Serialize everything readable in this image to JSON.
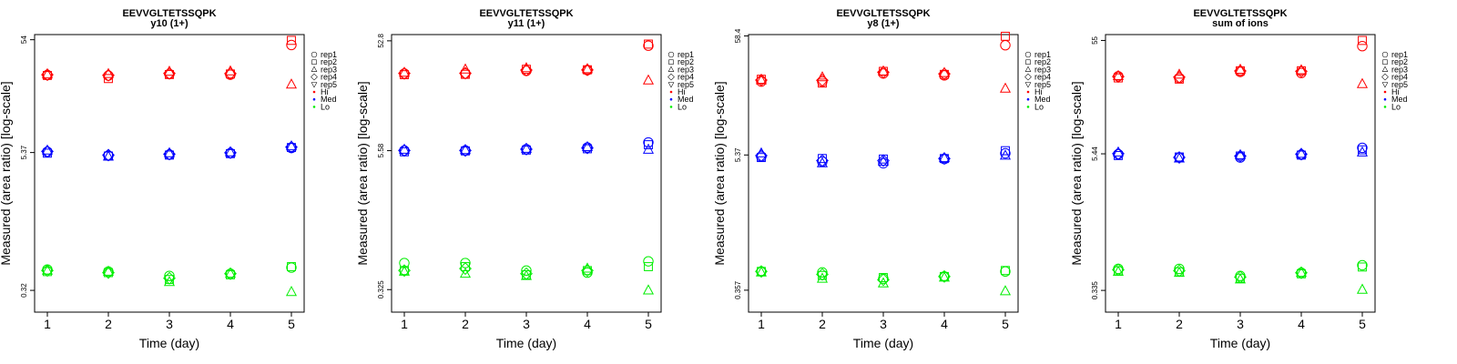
{
  "colors": {
    "Hi": "#ff0000",
    "Med": "#0000ff",
    "Lo": "#00ee00",
    "axis": "#000000"
  },
  "legend": {
    "reps": [
      {
        "label": "rep1",
        "marker": "circle"
      },
      {
        "label": "rep2",
        "marker": "square"
      },
      {
        "label": "rep3",
        "marker": "triangle-up"
      },
      {
        "label": "rep4",
        "marker": "diamond"
      },
      {
        "label": "rep5",
        "marker": "triangle-down"
      }
    ],
    "levels": [
      {
        "label": "Hi",
        "color": "Hi"
      },
      {
        "label": "Med",
        "color": "Med"
      },
      {
        "label": "Lo",
        "color": "Lo"
      }
    ]
  },
  "chart_data": [
    {
      "type": "scatter",
      "title": "EEVVGLTETSSQPK",
      "subtitle": "y10 (1+)",
      "xlabel": "Time (day)",
      "ylabel": "Measured (area ratio) [log-scale]",
      "x_ticks": [
        "1",
        "2",
        "3",
        "4",
        "5"
      ],
      "y_ticks": [
        "0.32",
        "5.37",
        "54"
      ],
      "ylim_log": [
        0.32,
        54
      ],
      "ylim_display": [
        0.205,
        60
      ],
      "series": {
        "Hi": {
          "rep1": [
            26.2,
            25.9,
            26.8,
            26.4,
            48.5
          ],
          "rep2": [
            26.0,
            24.4,
            26.5,
            26.8,
            53.3
          ],
          "rep3": [
            26.6,
            26.8,
            28.1,
            28.3,
            21.6
          ],
          "rep4": [
            26.4,
            26.1,
            27.1,
            27.0,
            null
          ],
          "rep5": [
            null,
            null,
            null,
            null,
            null
          ]
        },
        "Med": {
          "rep1": [
            5.45,
            5.05,
            5.15,
            5.3,
            5.9
          ],
          "rep2": [
            5.3,
            5.0,
            5.1,
            5.25,
            5.95
          ],
          "rep3": [
            5.6,
            4.95,
            5.3,
            5.4,
            6.1
          ],
          "rep4": [
            5.5,
            5.1,
            5.2,
            5.35,
            6.0
          ],
          "rep5": [
            null,
            null,
            null,
            null,
            null
          ]
        },
        "Lo": {
          "rep1": [
            0.49,
            0.47,
            0.43,
            0.45,
            0.51
          ],
          "rep2": [
            0.47,
            0.46,
            0.4,
            0.44,
            0.52
          ],
          "rep3": [
            0.48,
            0.47,
            0.38,
            0.45,
            0.31
          ],
          "rep4": [
            0.48,
            0.46,
            0.41,
            0.45,
            null
          ],
          "rep5": [
            null,
            null,
            null,
            null,
            null
          ]
        }
      }
    },
    {
      "type": "scatter",
      "title": "EEVVGLTETSSQPK",
      "subtitle": "y11 (1+)",
      "xlabel": "Time (day)",
      "ylabel": "Measured (area ratio) [log-scale]",
      "x_ticks": [
        "1",
        "2",
        "3",
        "4",
        "5"
      ],
      "y_ticks": [
        "0.325",
        "5.58",
        "52.8"
      ],
      "ylim_log": [
        0.325,
        52.8
      ],
      "ylim_display": [
        0.205,
        60
      ],
      "series": {
        "Hi": {
          "rep1": [
            27.0,
            27.0,
            28.6,
            29.0,
            47.8
          ],
          "rep2": [
            26.4,
            26.6,
            29.5,
            29.2,
            49.4
          ],
          "rep3": [
            27.5,
            29.4,
            30.2,
            29.6,
            23.5
          ],
          "rep4": [
            27.1,
            27.2,
            29.0,
            29.1,
            null
          ],
          "rep5": [
            null,
            null,
            null,
            null,
            null
          ]
        },
        "Med": {
          "rep1": [
            5.6,
            5.6,
            5.75,
            5.95,
            6.6
          ],
          "rep2": [
            5.45,
            5.55,
            5.65,
            5.8,
            6.3
          ],
          "rep3": [
            5.7,
            5.65,
            5.8,
            6.0,
            5.7
          ],
          "rep4": [
            5.6,
            5.6,
            5.75,
            5.9,
            null
          ],
          "rep5": [
            null,
            null,
            null,
            null,
            null
          ]
        },
        "Lo": {
          "rep1": [
            0.56,
            0.56,
            0.48,
            0.46,
            0.58
          ],
          "rep2": [
            0.48,
            0.52,
            0.44,
            0.48,
            0.52
          ],
          "rep3": [
            0.47,
            0.45,
            0.43,
            0.5,
            0.32
          ],
          "rep4": [
            0.48,
            0.5,
            0.45,
            0.48,
            null
          ],
          "rep5": [
            null,
            null,
            null,
            null,
            null
          ]
        }
      }
    },
    {
      "type": "scatter",
      "title": "EEVVGLTETSSQPK",
      "subtitle": "y8 (1+)",
      "xlabel": "Time (day)",
      "ylabel": "Measured (area ratio) [log-scale]",
      "x_ticks": [
        "1",
        "2",
        "3",
        "4",
        "5"
      ],
      "y_ticks": [
        "0.357",
        "5.37",
        "58.4"
      ],
      "ylim_log": [
        0.357,
        58.4
      ],
      "ylim_display": [
        0.23,
        60
      ],
      "series": {
        "Hi": {
          "rep1": [
            23.4,
            23.4,
            27.5,
            26.5,
            48.5
          ],
          "rep2": [
            24.5,
            22.7,
            28.7,
            27.0,
            58.0
          ],
          "rep3": [
            24.0,
            25.5,
            28.7,
            27.8,
            20.3
          ],
          "rep4": [
            24.1,
            24.0,
            28.2,
            27.3,
            null
          ],
          "rep5": [
            null,
            null,
            null,
            null,
            null
          ]
        },
        "Med": {
          "rep1": [
            5.2,
            4.7,
            4.55,
            4.95,
            5.55
          ],
          "rep2": [
            5.1,
            5.0,
            4.95,
            5.0,
            5.85
          ],
          "rep3": [
            5.55,
            4.55,
            4.7,
            5.05,
            5.3
          ],
          "rep4": [
            5.3,
            4.8,
            4.8,
            5.0,
            null
          ],
          "rep5": [
            null,
            null,
            null,
            null,
            null
          ]
        },
        "Lo": {
          "rep1": [
            0.52,
            0.51,
            0.45,
            0.47,
            0.52
          ],
          "rep2": [
            0.52,
            0.48,
            0.46,
            0.47,
            0.53
          ],
          "rep3": [
            0.51,
            0.45,
            0.41,
            0.46,
            0.35
          ],
          "rep4": [
            0.52,
            0.49,
            0.44,
            0.47,
            null
          ],
          "rep5": [
            null,
            null,
            null,
            null,
            null
          ]
        }
      }
    },
    {
      "type": "scatter",
      "title": "EEVVGLTETSSQPK",
      "subtitle": "sum of ions",
      "xlabel": "Time (day)",
      "ylabel": "Measured (area ratio) [log-scale]",
      "x_ticks": [
        "1",
        "2",
        "3",
        "4",
        "5"
      ],
      "y_ticks": [
        "0.335",
        "5.44",
        "55"
      ],
      "ylim_log": [
        0.335,
        55
      ],
      "ylim_display": [
        0.215,
        62
      ],
      "series": {
        "Hi": {
          "rep1": [
            26.5,
            25.5,
            29.0,
            28.3,
            49.0
          ],
          "rep2": [
            25.6,
            25.0,
            29.6,
            29.6,
            55.0
          ],
          "rep3": [
            26.6,
            27.4,
            30.3,
            30.0,
            22.6
          ],
          "rep4": [
            26.3,
            26.0,
            29.5,
            29.3,
            null
          ],
          "rep5": [
            null,
            null,
            null,
            null,
            null
          ]
        },
        "Med": {
          "rep1": [
            5.4,
            5.05,
            5.05,
            5.35,
            6.15
          ],
          "rep2": [
            5.25,
            5.1,
            5.2,
            5.3,
            5.9
          ],
          "rep3": [
            5.6,
            4.95,
            5.3,
            5.45,
            5.6
          ],
          "rep4": [
            5.45,
            5.05,
            5.2,
            5.4,
            null
          ],
          "rep5": [
            null,
            null,
            null,
            null,
            null
          ]
        },
        "Lo": {
          "rep1": [
            0.52,
            0.52,
            0.45,
            0.48,
            0.56
          ],
          "rep2": [
            0.5,
            0.49,
            0.43,
            0.47,
            0.54
          ],
          "rep3": [
            0.49,
            0.48,
            0.42,
            0.48,
            0.34
          ],
          "rep4": [
            0.51,
            0.5,
            0.44,
            0.48,
            null
          ],
          "rep5": [
            null,
            null,
            null,
            null,
            null
          ]
        }
      }
    }
  ]
}
